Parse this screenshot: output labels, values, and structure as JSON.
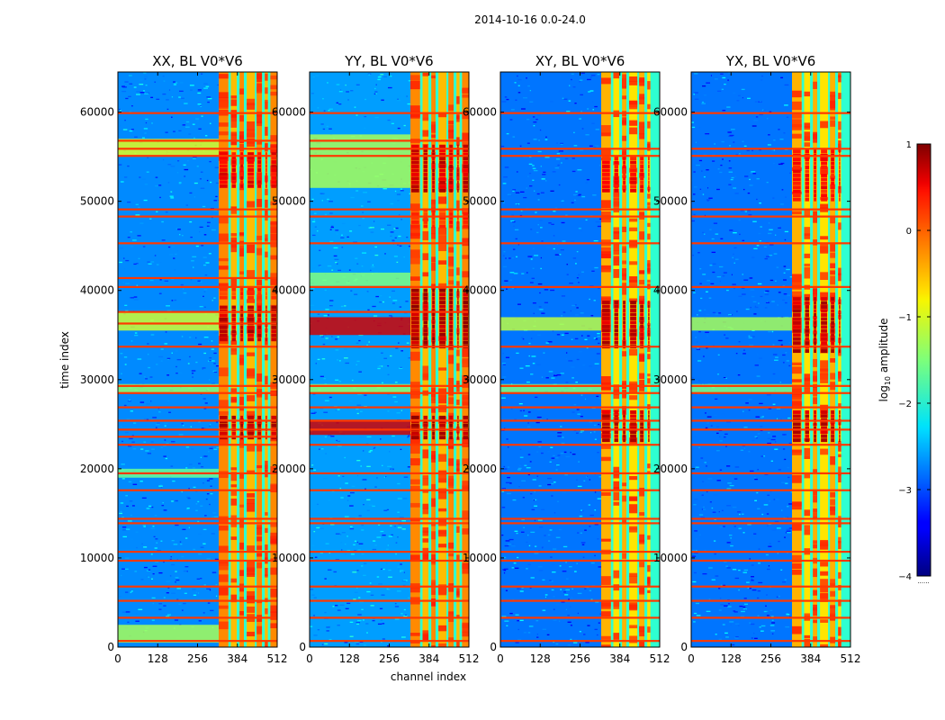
{
  "suptitle": "2014-10-16 0.0-24.0",
  "xlabel": "channel index",
  "ylabel": "time index",
  "colorbar": {
    "label": "log10 amplitude",
    "label_base": "log",
    "label_sub": "10",
    "label_rest": " amplitude",
    "ticks": [
      1,
      0,
      -1,
      -2,
      -3,
      -4
    ],
    "tick_labels": [
      "1",
      "0",
      "−1",
      "−2",
      "−3",
      "−4"
    ],
    "range": [
      -4,
      1
    ],
    "colormap": "jet",
    "footer": "......"
  },
  "chart_data": {
    "type": "heatmap",
    "title": "2014-10-16 0.0-24.0",
    "xlabel": "channel index",
    "ylabel": "time index",
    "xlim": [
      0,
      512
    ],
    "ylim": [
      0,
      64500
    ],
    "x_ticks": [
      0,
      128,
      256,
      384,
      512
    ],
    "x_tick_labels": [
      "0",
      "128",
      "256",
      "384",
      "512"
    ],
    "y_ticks": [
      0,
      10000,
      20000,
      30000,
      40000,
      50000,
      60000
    ],
    "y_tick_labels": [
      "0",
      "10000",
      "20000",
      "30000",
      "40000",
      "50000",
      "60000"
    ],
    "value_label": "log10 amplitude",
    "value_range": [
      -4,
      1
    ],
    "panels": [
      {
        "title": "XX, BL V0*V6",
        "background_level": -2.7,
        "signal_band": {
          "channels": [
            324,
            512
          ],
          "level": -0.3
        },
        "signal_columns": [
          [
            324,
            355
          ],
          [
            363,
            382
          ],
          [
            391,
            405
          ],
          [
            414,
            440
          ],
          [
            446,
            463
          ],
          [
            472,
            482
          ],
          [
            490,
            512
          ]
        ],
        "strong_intervals": [
          [
            23300,
            26000,
            0.85
          ],
          [
            34300,
            38000,
            0.85
          ],
          [
            51500,
            55500,
            0.6
          ],
          [
            39000,
            40000,
            0.3
          ]
        ],
        "row_features": [
          [
            55000,
            57000,
            -1.0
          ],
          [
            35500,
            37500,
            -1.1
          ],
          [
            28500,
            29500,
            -1.4
          ],
          [
            19000,
            20000,
            -1.6
          ],
          [
            500,
            2500,
            -1.3
          ]
        ],
        "rfi_rows": [
          700,
          3300,
          5200,
          6800,
          9700,
          10700,
          13900,
          14400,
          17600,
          19500,
          22700,
          23600,
          24400,
          25400,
          26900,
          28500,
          29300,
          33700,
          36300,
          37600,
          40400,
          41400,
          45300,
          48300,
          49100,
          55100,
          55900,
          56800,
          59900
        ]
      },
      {
        "title": "YY, BL V0*V6",
        "background_level": -2.6,
        "signal_band": {
          "channels": [
            324,
            512
          ],
          "level": -0.3
        },
        "signal_columns": [
          [
            324,
            355
          ],
          [
            363,
            382
          ],
          [
            391,
            405
          ],
          [
            414,
            440
          ],
          [
            446,
            463
          ],
          [
            472,
            482
          ],
          [
            490,
            512
          ]
        ],
        "strong_intervals": [
          [
            23300,
            26000,
            0.95
          ],
          [
            33500,
            40000,
            0.95
          ],
          [
            51000,
            56000,
            0.8
          ],
          [
            47000,
            49000,
            0.4
          ]
        ],
        "row_features": [
          [
            23800,
            25500,
            0.6
          ],
          [
            35000,
            37000,
            0.6
          ],
          [
            51500,
            57500,
            -1.3
          ],
          [
            40500,
            42000,
            -1.5
          ],
          [
            28500,
            29500,
            -1.4
          ]
        ],
        "rfi_rows": [
          700,
          3300,
          5200,
          6800,
          9700,
          10700,
          13900,
          14400,
          17600,
          19500,
          22700,
          24400,
          25400,
          26900,
          28500,
          29300,
          33700,
          37600,
          40400,
          45300,
          48300,
          49100,
          55100,
          55900,
          56800,
          59900
        ]
      },
      {
        "title": "XY, BL V0*V6",
        "background_level": -2.8,
        "signal_band": {
          "channels": [
            324,
            512
          ],
          "level": -0.5
        },
        "signal_columns": [
          [
            324,
            355
          ],
          [
            363,
            382
          ],
          [
            391,
            405
          ],
          [
            414,
            440
          ],
          [
            446,
            463
          ],
          [
            472,
            482
          ]
        ],
        "strong_intervals": [
          [
            23000,
            26500,
            0.85
          ],
          [
            33500,
            38500,
            0.85
          ],
          [
            51000,
            55000,
            0.5
          ]
        ],
        "row_features": [
          [
            35500,
            37000,
            -1.2
          ],
          [
            28500,
            29500,
            -1.5
          ]
        ],
        "rfi_rows": [
          700,
          3300,
          5200,
          6800,
          9700,
          10700,
          13900,
          14400,
          17600,
          19500,
          22700,
          24400,
          25400,
          26900,
          28500,
          29300,
          33700,
          40400,
          45300,
          48300,
          49100,
          55100,
          55900,
          59900
        ]
      },
      {
        "title": "YX, BL V0*V6",
        "background_level": -2.8,
        "signal_band": {
          "channels": [
            324,
            512
          ],
          "level": -0.5
        },
        "signal_columns": [
          [
            324,
            355
          ],
          [
            363,
            382
          ],
          [
            391,
            405
          ],
          [
            414,
            440
          ],
          [
            446,
            463
          ],
          [
            472,
            482
          ]
        ],
        "strong_intervals": [
          [
            23000,
            26500,
            0.85
          ],
          [
            33000,
            39000,
            0.85
          ],
          [
            50000,
            55500,
            0.5
          ]
        ],
        "row_features": [
          [
            35500,
            37000,
            -1.3
          ],
          [
            28500,
            29500,
            -1.5
          ]
        ],
        "rfi_rows": [
          700,
          3300,
          5200,
          6800,
          9700,
          10700,
          13900,
          14400,
          17600,
          19500,
          22700,
          24400,
          25400,
          26900,
          28500,
          29300,
          33700,
          40400,
          45300,
          48300,
          49100,
          55100,
          55900,
          59900
        ]
      }
    ]
  }
}
